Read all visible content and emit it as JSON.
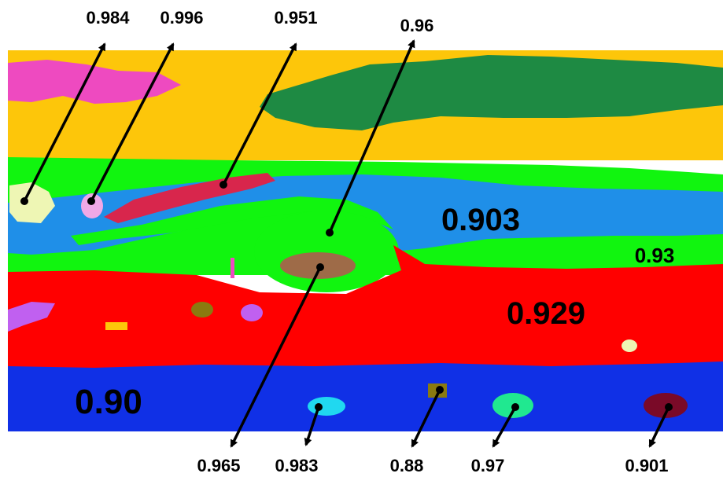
{
  "colors": {
    "background": "#ffffff",
    "yellow": "#fdc60a",
    "dark_green": "#1e8a43",
    "green": "#11f50f",
    "light_blue": "#1f8fe8",
    "red": "#ff0000",
    "blue": "#1030e6",
    "magenta": "#ee4ac0",
    "crimson": "#d8264c",
    "brown": "#9e6b48",
    "pale_yellow": "#eef6b4",
    "pink": "#f0a8e6",
    "purple": "#c060f0",
    "cyan": "#20d8f0",
    "olive": "#8a7a10",
    "sea_green": "#20e890",
    "maroon": "#7a0a28",
    "arrow": "#000000"
  },
  "region_labels": {
    "light_blue_zone": "0.903",
    "green_zone": "0.93",
    "red_zone": "0.929",
    "blue_zone": "0.90"
  },
  "spot_labels": {
    "pale_yellow_spot": "0.984",
    "pink_spot": "0.996",
    "crimson_band": "0.951",
    "central_green_oval": "0.96",
    "brown_oval": "0.965",
    "cyan_spot": "0.983",
    "olive_spot": "0.88",
    "sea_green_spot": "0.97",
    "maroon_spot": "0.901"
  }
}
